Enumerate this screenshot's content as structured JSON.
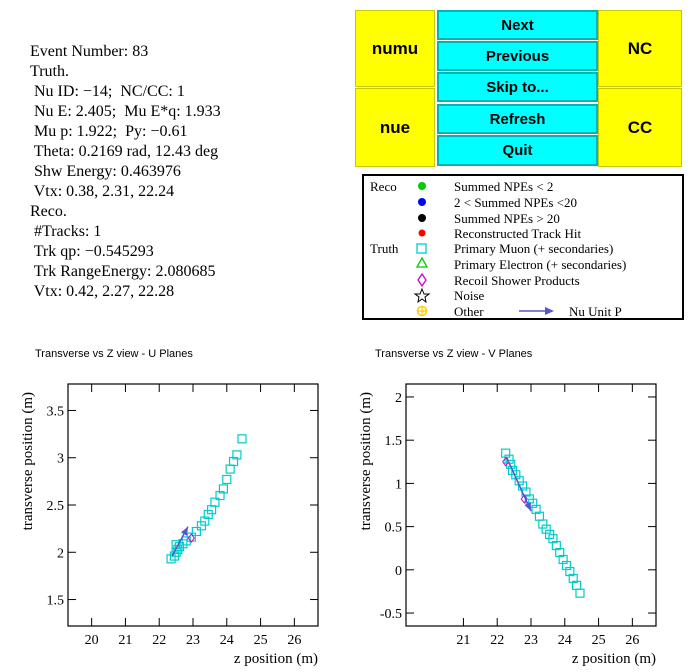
{
  "info": {
    "event": "Event Number: 83",
    "truth_header": "Truth.",
    "nu_id": " Nu ID: −14;  NC/CC: 1",
    "nu_e": " Nu E: 2.405;  Mu E*q: 1.933",
    "mu_p": " Mu p: 1.922;  Py: −0.61",
    "theta": " Theta: 0.2169 rad, 12.43 deg",
    "shw": " Shw Energy: 0.463976",
    "vtx_truth": " Vtx: 0.38, 2.31, 22.24",
    "reco_header": "Reco.",
    "ntracks": " #Tracks: 1",
    "trk_qp": " Trk qp: −0.545293",
    "trk_range": " Trk RangeEnergy: 2.080685",
    "vtx_reco": " Vtx: 0.42, 2.27, 22.28"
  },
  "buttons": {
    "numu": "numu",
    "nc": "NC",
    "nue": "nue",
    "cc": "CC",
    "next": "Next",
    "previous": "Previous",
    "skip": "Skip to...",
    "refresh": "Refresh",
    "quit": "Quit"
  },
  "legend": {
    "reco": "Reco",
    "truth": "Truth",
    "items": [
      "Summed NPEs < 2",
      "2 < Summed NPEs <20",
      "Summed NPEs > 20",
      "Reconstructed Track Hit",
      "Primary Muon (+ secondaries)",
      "Primary Electron (+ secondaries)",
      "Recoil Shower Products",
      "Noise",
      "Other"
    ],
    "arrow_label": "Nu Unit P",
    "colors": [
      "#00cc00",
      "#0000ff",
      "#000000",
      "#ff0000",
      "#00cccc",
      "#00cc00",
      "#cc00cc",
      "#000000",
      "#ffcc00"
    ]
  },
  "chart_data": [
    {
      "type": "scatter",
      "title": "Transverse vs Z view - U Planes",
      "xlabel": "z position (m)",
      "ylabel": "transverse position (m)",
      "xlim": [
        19.3,
        26.7
      ],
      "ylim": [
        1.22,
        3.78
      ],
      "xticks": [
        "20",
        "21",
        "22",
        "23",
        "24",
        "25",
        "26"
      ],
      "yticks": [
        "1.5",
        "2",
        "2.5",
        "3",
        "3.5"
      ],
      "muon_hits": [
        [
          22.35,
          1.93
        ],
        [
          22.45,
          1.96
        ],
        [
          22.5,
          2.0
        ],
        [
          22.55,
          2.03
        ],
        [
          22.6,
          2.06
        ],
        [
          22.5,
          2.08
        ],
        [
          22.7,
          2.09
        ],
        [
          22.8,
          2.12
        ],
        [
          22.95,
          2.16
        ],
        [
          23.1,
          2.22
        ],
        [
          23.25,
          2.28
        ],
        [
          23.35,
          2.33
        ],
        [
          23.45,
          2.4
        ],
        [
          23.55,
          2.45
        ],
        [
          23.65,
          2.53
        ],
        [
          23.8,
          2.6
        ],
        [
          23.9,
          2.67
        ],
        [
          24.0,
          2.77
        ],
        [
          24.1,
          2.88
        ],
        [
          24.2,
          2.96
        ],
        [
          24.3,
          3.03
        ],
        [
          24.45,
          3.2
        ]
      ],
      "shower_hits": [
        [
          22.95,
          2.15
        ]
      ],
      "nu_arrow": {
        "from": [
          22.38,
          1.96
        ],
        "to": [
          22.85,
          2.27
        ]
      },
      "color_muon": "#00cccc",
      "color_shower": "#cc00cc",
      "color_arrow": "#5555cc"
    },
    {
      "type": "scatter",
      "title": "Transverse vs Z view - V Planes",
      "xlabel": "z position (m)",
      "ylabel": "transverse position (m)",
      "xlim": [
        19.3,
        26.7
      ],
      "ylim": [
        -0.65,
        2.15
      ],
      "xticks": [
        "21",
        "22",
        "23",
        "24",
        "25",
        "26"
      ],
      "yticks": [
        "-0.5",
        "0",
        "0.5",
        "1",
        "1.5",
        "2"
      ],
      "muon_hits": [
        [
          22.25,
          1.35
        ],
        [
          22.35,
          1.28
        ],
        [
          22.4,
          1.22
        ],
        [
          22.45,
          1.15
        ],
        [
          22.55,
          1.1
        ],
        [
          22.65,
          1.03
        ],
        [
          22.75,
          0.97
        ],
        [
          22.85,
          0.9
        ],
        [
          22.95,
          0.82
        ],
        [
          23.05,
          0.77
        ],
        [
          23.15,
          0.7
        ],
        [
          23.25,
          0.62
        ],
        [
          23.35,
          0.53
        ],
        [
          23.45,
          0.47
        ],
        [
          23.55,
          0.41
        ],
        [
          23.65,
          0.36
        ],
        [
          23.75,
          0.28
        ],
        [
          23.85,
          0.2
        ],
        [
          23.95,
          0.12
        ],
        [
          24.05,
          0.05
        ],
        [
          24.15,
          -0.02
        ],
        [
          24.25,
          -0.1
        ],
        [
          24.35,
          -0.18
        ],
        [
          24.45,
          -0.27
        ]
      ],
      "shower_hits": [
        [
          22.8,
          0.82
        ],
        [
          22.25,
          1.25
        ]
      ],
      "nu_arrow": {
        "from": [
          22.28,
          1.3
        ],
        "to": [
          23.0,
          0.68
        ]
      },
      "color_muon": "#00cccc",
      "color_shower": "#cc00cc",
      "color_arrow": "#5555cc"
    }
  ]
}
